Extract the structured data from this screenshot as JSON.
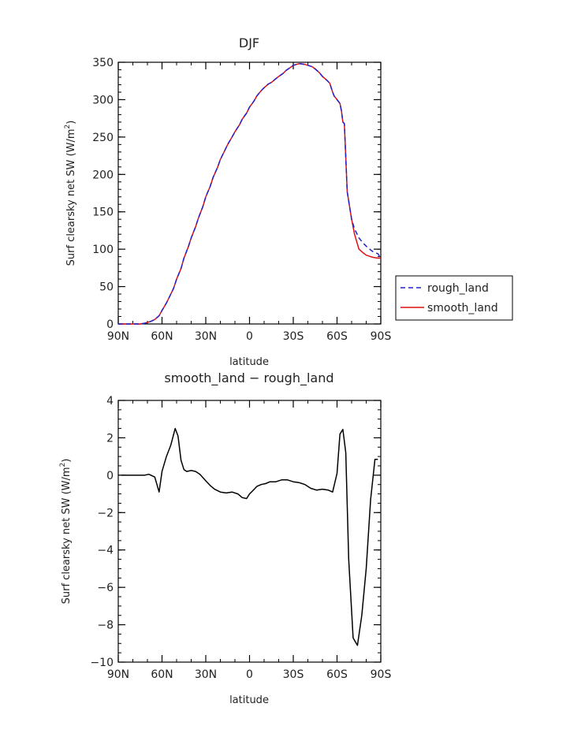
{
  "chart_data": [
    {
      "type": "line",
      "title": "DJF",
      "xlabel": "latitude",
      "ylabel_main": "Surf clearsky net SW (W/m",
      "ylabel_sup": "2",
      "ylabel_end": ")",
      "xlim": [
        -90,
        90
      ],
      "ylim": [
        0,
        350
      ],
      "x_ticks": [
        {
          "value": -90,
          "label": "90N"
        },
        {
          "value": -60,
          "label": "60N"
        },
        {
          "value": -30,
          "label": "30N"
        },
        {
          "value": 0,
          "label": "0"
        },
        {
          "value": 30,
          "label": "30S"
        },
        {
          "value": 60,
          "label": "60S"
        },
        {
          "value": 90,
          "label": "90S"
        }
      ],
      "y_ticks": [
        0,
        50,
        100,
        150,
        200,
        250,
        300,
        350
      ],
      "x_minor_step": 10,
      "y_minor_step": 10,
      "legend_position": "right",
      "series": [
        {
          "name": "rough_land",
          "color": "#2222cc",
          "dash": "dashed",
          "x": [
            -90,
            -85,
            -80,
            -75,
            -72,
            -70,
            -67,
            -65,
            -62,
            -60,
            -57,
            -55,
            -52,
            -50,
            -47,
            -45,
            -42,
            -40,
            -37,
            -35,
            -32,
            -30,
            -27,
            -25,
            -22,
            -20,
            -17,
            -15,
            -12,
            -10,
            -7,
            -5,
            -2,
            0,
            3,
            5,
            8,
            10,
            13,
            15,
            18,
            20,
            23,
            25,
            28,
            30,
            32,
            34,
            35,
            38,
            40,
            43,
            45,
            48,
            50,
            53,
            55,
            57,
            58,
            60,
            62,
            63,
            64,
            65,
            67,
            70,
            72,
            75,
            78,
            80,
            83,
            85,
            88,
            90
          ],
          "y": [
            0,
            0,
            0,
            0,
            1,
            2,
            4,
            6,
            11,
            18,
            28,
            36,
            48,
            60,
            74,
            88,
            103,
            115,
            130,
            142,
            157,
            170,
            184,
            196,
            209,
            220,
            232,
            240,
            250,
            257,
            266,
            274,
            282,
            290,
            298,
            305,
            312,
            316,
            321,
            323,
            328,
            331,
            335,
            339,
            343,
            346,
            347,
            348,
            348,
            347,
            346,
            344,
            341,
            336,
            331,
            326,
            322,
            310,
            305,
            300,
            295,
            285,
            270,
            268,
            177,
            140,
            127,
            115,
            108,
            104,
            99,
            96,
            94,
            88
          ]
        },
        {
          "name": "smooth_land",
          "color": "#dd1111",
          "dash": "solid",
          "x": [
            -90,
            -85,
            -80,
            -75,
            -72,
            -70,
            -67,
            -65,
            -62,
            -60,
            -57,
            -55,
            -52,
            -50,
            -47,
            -45,
            -42,
            -40,
            -37,
            -35,
            -32,
            -30,
            -27,
            -25,
            -22,
            -20,
            -17,
            -15,
            -12,
            -10,
            -7,
            -5,
            -2,
            0,
            3,
            5,
            8,
            10,
            13,
            15,
            18,
            20,
            23,
            25,
            28,
            30,
            32,
            34,
            35,
            38,
            40,
            43,
            45,
            48,
            50,
            53,
            55,
            57,
            58,
            60,
            62,
            63,
            64,
            65,
            67,
            70,
            72,
            75,
            78,
            80,
            83,
            85,
            88,
            90
          ],
          "y": [
            0,
            0,
            0,
            0,
            1,
            2,
            4,
            6,
            11,
            18,
            28,
            36,
            48,
            60,
            74,
            88,
            103,
            115,
            130,
            142,
            157,
            170,
            184,
            196,
            209,
            220,
            232,
            240,
            250,
            257,
            266,
            274,
            282,
            290,
            298,
            305,
            312,
            316,
            321,
            323,
            328,
            331,
            335,
            339,
            343,
            346,
            347,
            348,
            348,
            347,
            346,
            344,
            341,
            336,
            331,
            326,
            322,
            310,
            305,
            300,
            295,
            285,
            270,
            268,
            177,
            140,
            120,
            100,
            95,
            92,
            90,
            89,
            88,
            88
          ]
        }
      ]
    },
    {
      "type": "line",
      "title": "smooth_land − rough_land",
      "xlabel": "latitude",
      "ylabel_main": "Surf clearsky net SW (W/m",
      "ylabel_sup": "2",
      "ylabel_end": ")",
      "xlim": [
        -90,
        90
      ],
      "ylim": [
        -10,
        4
      ],
      "x_ticks": [
        {
          "value": -90,
          "label": "90N"
        },
        {
          "value": -60,
          "label": "60N"
        },
        {
          "value": -30,
          "label": "30N"
        },
        {
          "value": 0,
          "label": "0"
        },
        {
          "value": 30,
          "label": "30S"
        },
        {
          "value": 60,
          "label": "60S"
        },
        {
          "value": 90,
          "label": "90S"
        }
      ],
      "y_ticks": [
        -10,
        -8,
        -6,
        -4,
        -2,
        0,
        2,
        4
      ],
      "x_minor_step": 10,
      "y_minor_step": 0.5,
      "series": [
        {
          "color": "#000000",
          "dash": "solid",
          "x": [
            -88,
            -80,
            -72,
            -69,
            -65,
            -62,
            -60,
            -57,
            -54,
            -51,
            -49,
            -47,
            -45,
            -43,
            -40,
            -37,
            -34,
            -30,
            -27,
            -24,
            -20,
            -16,
            -12,
            -8,
            -5,
            -2,
            0,
            2,
            5,
            8,
            11,
            14,
            18,
            22,
            26,
            30,
            34,
            38,
            42,
            46,
            50,
            54,
            57,
            60,
            62,
            64,
            66,
            68,
            71,
            74,
            77,
            80,
            83,
            86,
            88
          ],
          "y": [
            0,
            0,
            0,
            0.05,
            -0.1,
            -0.9,
            0.2,
            1.0,
            1.6,
            2.5,
            2.1,
            0.8,
            0.3,
            0.2,
            0.25,
            0.2,
            0.05,
            -0.3,
            -0.55,
            -0.75,
            -0.9,
            -0.95,
            -0.9,
            -1.0,
            -1.2,
            -1.25,
            -1.0,
            -0.85,
            -0.6,
            -0.5,
            -0.45,
            -0.35,
            -0.35,
            -0.25,
            -0.25,
            -0.35,
            -0.4,
            -0.5,
            -0.7,
            -0.8,
            -0.75,
            -0.8,
            -0.9,
            0.1,
            2.2,
            2.45,
            1.2,
            -4.5,
            -8.7,
            -9.1,
            -7.5,
            -5.0,
            -1.3,
            0.85,
            0.85
          ]
        }
      ]
    }
  ]
}
